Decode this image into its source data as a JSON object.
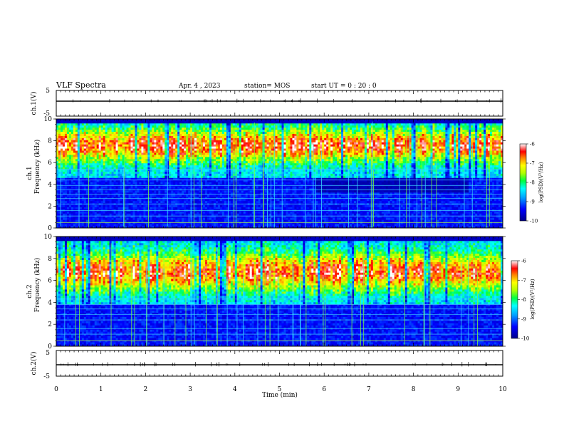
{
  "header": {
    "title": "VLF Spectra",
    "date": "Apr. 4 , 2023",
    "station": "station= MOS",
    "start": "start UT = 0 : 20 : 0"
  },
  "chart_data": [
    {
      "type": "line",
      "name": "ch1-waveform",
      "ylabel": "ch.1(V)",
      "ylim": [
        -5,
        5
      ],
      "yticks": [
        "5",
        "-5"
      ],
      "xlim": [
        0,
        10
      ]
    },
    {
      "type": "heatmap",
      "name": "ch1-spectrogram",
      "ylabel_top": "ch.1",
      "ylabel": "Frequency (kHz)",
      "ylim": [
        0,
        10
      ],
      "yticks": [
        "0",
        "2",
        "4",
        "6",
        "8",
        "10"
      ],
      "xlim": [
        0,
        10
      ],
      "colorbar": {
        "label": "log(PSD)(V²/Hz)",
        "range": [
          -10,
          -6
        ],
        "ticks": [
          "-6",
          "-7",
          "-8",
          "-9",
          "-10"
        ]
      }
    },
    {
      "type": "heatmap",
      "name": "ch2-spectrogram",
      "ylabel_top": "ch.2",
      "ylabel": "Frequency (kHz)",
      "ylim": [
        0,
        10
      ],
      "yticks": [
        "0",
        "2",
        "4",
        "6",
        "8",
        "10"
      ],
      "xlim": [
        0,
        10
      ],
      "colorbar": {
        "label": "log(PSD)(V²/Hz)",
        "range": [
          -10,
          -6
        ],
        "ticks": [
          "-6",
          "-7",
          "-8",
          "-9",
          "-10"
        ]
      }
    },
    {
      "type": "line",
      "name": "ch2-waveform",
      "ylabel": "ch.2(V)",
      "ylim": [
        -5,
        5
      ],
      "yticks": [
        "5",
        "-5"
      ],
      "xlim": [
        0,
        10
      ],
      "xlabel": "Time (min)",
      "xticks": [
        "0",
        "1",
        "2",
        "3",
        "4",
        "5",
        "6",
        "7",
        "8",
        "9",
        "10"
      ]
    }
  ]
}
